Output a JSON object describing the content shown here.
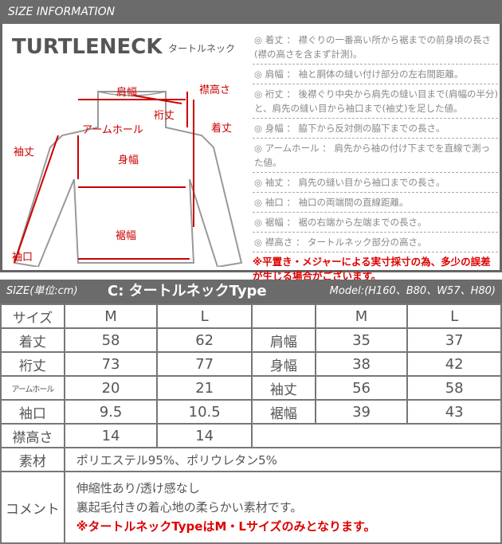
{
  "header": {
    "title": "SIZE INFORMATION"
  },
  "diagram": {
    "title": "TURTLENECK",
    "subtitle": "タートルネック",
    "labels": {
      "shoulder": "肩幅",
      "collar": "襟高さ",
      "yuki": "裄丈",
      "armhole": "アームホール",
      "length": "着丈",
      "sleeve": "袖丈",
      "body": "身幅",
      "hem": "裾幅",
      "cuff": "袖口"
    }
  },
  "descriptions": [
    "◎ 着丈 ： 襟ぐりの一番高い所から裾までの前身頃の長さ(襟の高さを含まず計測)。",
    "◎ 肩幅 ： 袖と胴体の縫い付け部分の左右間距離。",
    "◎ 裄丈 ： 後襟ぐり中央から肩先の縫い目まで(肩幅の半分)と、肩先の縫い目から袖口まで(袖丈)を足した値。",
    "◎ 身幅 ： 脇下から反対側の脇下までの長さ。",
    "◎ アームホール ： 肩先から袖の付け下までを直線で測った値。",
    "◎ 袖丈 ： 肩先の縫い目から袖口までの長さ。",
    "◎ 袖口 ： 袖口の両端間の直線距離。",
    "◎ 裾幅 ： 裾の右端から左端までの長さ。",
    "◎ 襟高さ ： タートルネック部分の高さ。"
  ],
  "warning": "※平置き・メジャーによる実寸採寸の為、多少の誤差が生じる場合がございます。",
  "table": {
    "unit": "SIZE(単位:cm)",
    "type": "C: タートルネックType",
    "model": "Model:(H160、B80、W57、H80)",
    "rows": [
      [
        "サイズ",
        "M",
        "L",
        "",
        "M",
        "L"
      ],
      [
        "着丈",
        "58",
        "62",
        "肩幅",
        "35",
        "37"
      ],
      [
        "裄丈",
        "73",
        "77",
        "身幅",
        "38",
        "42"
      ],
      [
        "アームホール",
        "20",
        "21",
        "袖丈",
        "56",
        "58"
      ],
      [
        "袖口",
        "9.5",
        "10.5",
        "裾幅",
        "39",
        "43"
      ],
      [
        "襟高さ",
        "14",
        "14"
      ]
    ],
    "material_label": "素材",
    "material": "ポリエステル95%、ポリウレタン5%",
    "comment_label": "コメント",
    "comments": [
      "伸縮性あり/透け感なし",
      "裏起毛付きの着心地の柔らかい素材です。"
    ],
    "comment_warning": "※タートルネックTypeはM・Lサイズのみとなります。"
  },
  "colors": {
    "header": "#6b6b6b",
    "accent": "#d00000"
  }
}
